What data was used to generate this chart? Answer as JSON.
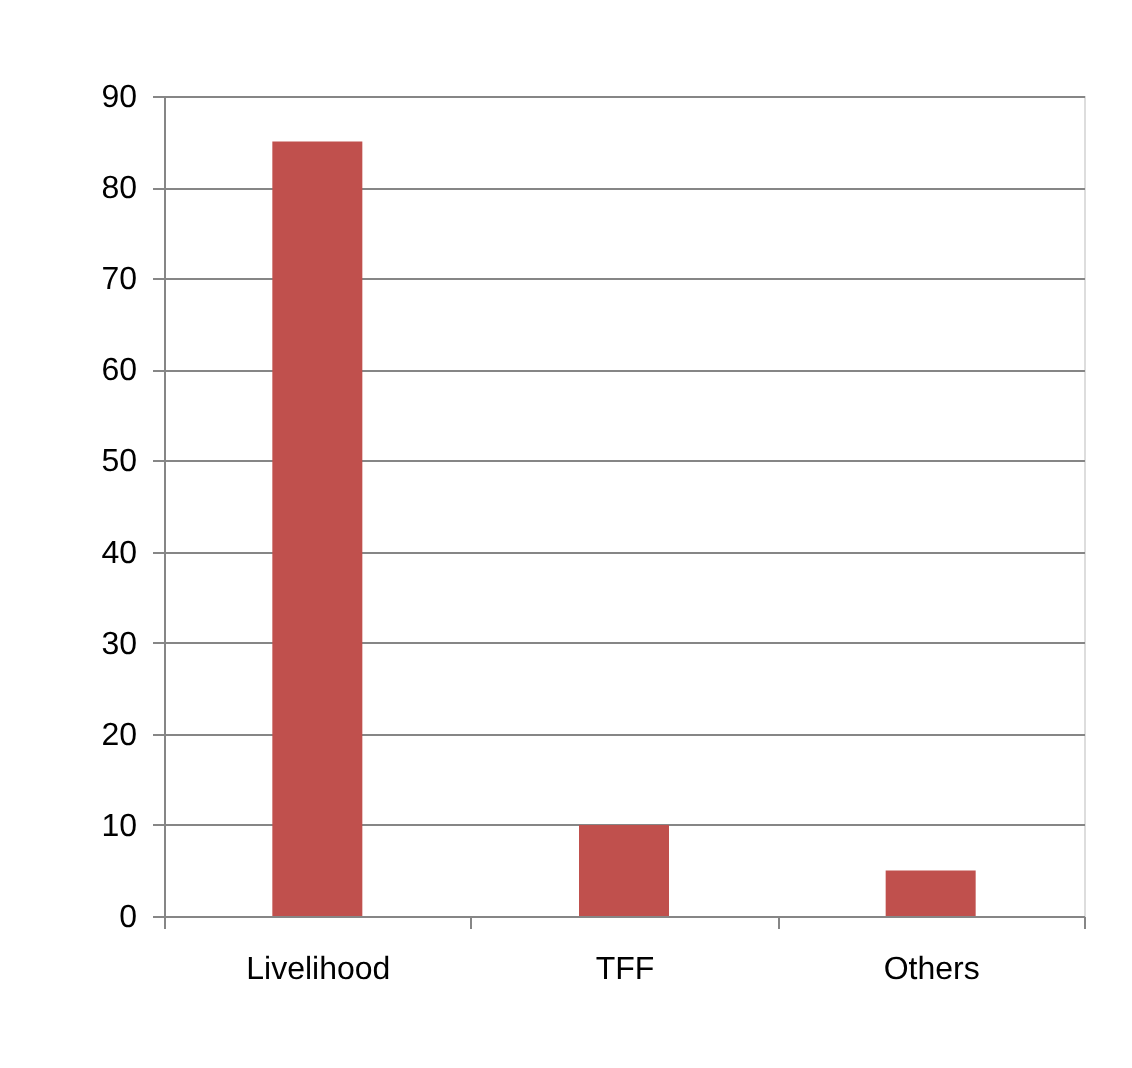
{
  "chart_data": {
    "type": "bar",
    "categories": [
      "Livelihood",
      "TFF",
      "Others"
    ],
    "values": [
      85,
      10,
      5
    ],
    "color": "#c0504d",
    "ylim": [
      0,
      90
    ],
    "yticks": [
      0,
      10,
      20,
      30,
      40,
      50,
      60,
      70,
      80,
      90
    ],
    "grid": "y"
  }
}
